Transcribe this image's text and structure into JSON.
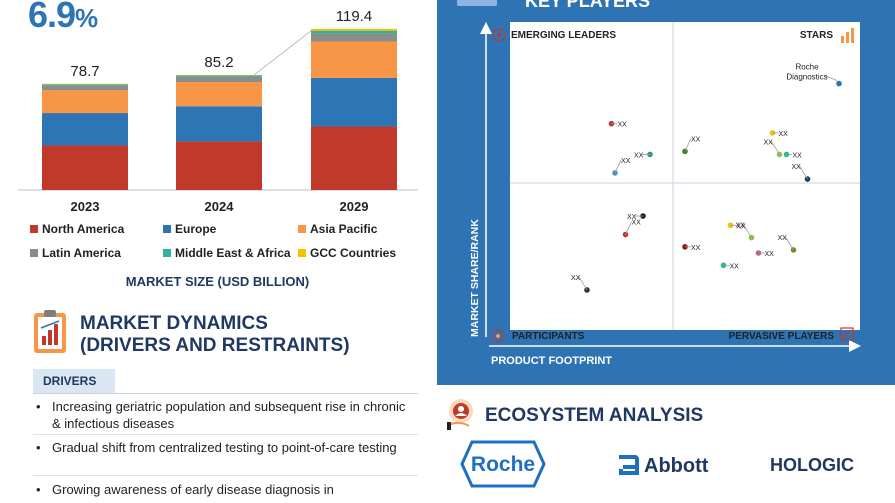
{
  "cagr": {
    "value": "6.9",
    "suffix": "%"
  },
  "chart_data": [
    {
      "type": "bar",
      "stacked": true,
      "categories": [
        "2023",
        "2024",
        "2029"
      ],
      "totals": [
        "78.7",
        "85.2",
        "119.4"
      ],
      "xlabel": "MARKET SIZE (USD BILLION)",
      "series": [
        {
          "name": "North America",
          "color": "#c0392b",
          "values": [
            33,
            36,
            47
          ]
        },
        {
          "name": "Europe",
          "color": "#2e75b6",
          "values": [
            24,
            26,
            36
          ]
        },
        {
          "name": "Asia Pacific",
          "color": "#f79646",
          "values": [
            17,
            18,
            27
          ]
        },
        {
          "name": "Latin America",
          "color": "#8c8c8c",
          "values": [
            3.5,
            4,
            6
          ]
        },
        {
          "name": "Middle East & Africa",
          "color": "#2fb39a",
          "values": [
            0.8,
            0.9,
            2
          ]
        },
        {
          "name": "GCC Countries",
          "color": "#f2c200",
          "values": [
            0.4,
            0.3,
            1.4
          ]
        }
      ]
    },
    {
      "type": "scatter",
      "title": "KEY PLAYERS",
      "xlabel": "PRODUCT FOOTPRINT",
      "ylabel": "MARKET SHARE/RANK",
      "quadrants": {
        "top_left": "EMERGING LEADERS",
        "top_right": "STARS",
        "bottom_left": "PARTICIPANTS",
        "bottom_right": "PERVASIVE PLAYERS"
      },
      "points": [
        {
          "label": "Roche Diagnostics",
          "x": 0.94,
          "y": 0.8,
          "color": "#2e75b6"
        },
        {
          "label": "XX",
          "x": 0.29,
          "y": 0.67,
          "color": "#c0392b"
        },
        {
          "label": "XX",
          "x": 0.5,
          "y": 0.58,
          "color": "#4a7a2a"
        },
        {
          "label": "XX",
          "x": 0.4,
          "y": 0.57,
          "color": "#2e9e6a"
        },
        {
          "label": "XX",
          "x": 0.3,
          "y": 0.51,
          "color": "#4a90c8"
        },
        {
          "label": "XX",
          "x": 0.75,
          "y": 0.64,
          "color": "#f2c200"
        },
        {
          "label": "XX",
          "x": 0.77,
          "y": 0.57,
          "color": "#8bc34a"
        },
        {
          "label": "XX",
          "x": 0.79,
          "y": 0.57,
          "color": "#2fb39a"
        },
        {
          "label": "XX",
          "x": 0.85,
          "y": 0.49,
          "color": "#1f3864"
        },
        {
          "label": "XX",
          "x": 0.38,
          "y": 0.37,
          "color": "#222222"
        },
        {
          "label": "XX",
          "x": 0.33,
          "y": 0.31,
          "color": "#c0392b"
        },
        {
          "label": "XX",
          "x": 0.5,
          "y": 0.27,
          "color": "#8b1a1a"
        },
        {
          "label": "XX",
          "x": 0.22,
          "y": 0.13,
          "color": "#333333"
        },
        {
          "label": "XX",
          "x": 0.63,
          "y": 0.34,
          "color": "#f2c200"
        },
        {
          "label": "XX",
          "x": 0.69,
          "y": 0.3,
          "color": "#8bc34a"
        },
        {
          "label": "XX",
          "x": 0.71,
          "y": 0.25,
          "color": "#c06090"
        },
        {
          "label": "XX",
          "x": 0.81,
          "y": 0.26,
          "color": "#6b8e23"
        },
        {
          "label": "XX",
          "x": 0.61,
          "y": 0.21,
          "color": "#2fb39a"
        }
      ]
    }
  ],
  "market_dynamics": {
    "title_line1": "MARKET DYNAMICS",
    "title_line2": "(DRIVERS AND RESTRAINTS)",
    "tab": "DRIVERS",
    "bullet": "•",
    "drivers": [
      "Increasing geriatric population and subsequent rise in chronic & infectious diseases",
      "Gradual shift from centralized testing to point-of-care testing",
      "Growing awareness of early disease diagnosis in"
    ]
  },
  "ecosystem": {
    "title": "ECOSYSTEM ANALYSIS",
    "logos": [
      "Roche",
      "Abbott",
      "HOLOGIC"
    ],
    "colors": {
      "roche": "#1e6fc4",
      "abbott": "#1f3864",
      "hologic": "#1f3864"
    }
  }
}
